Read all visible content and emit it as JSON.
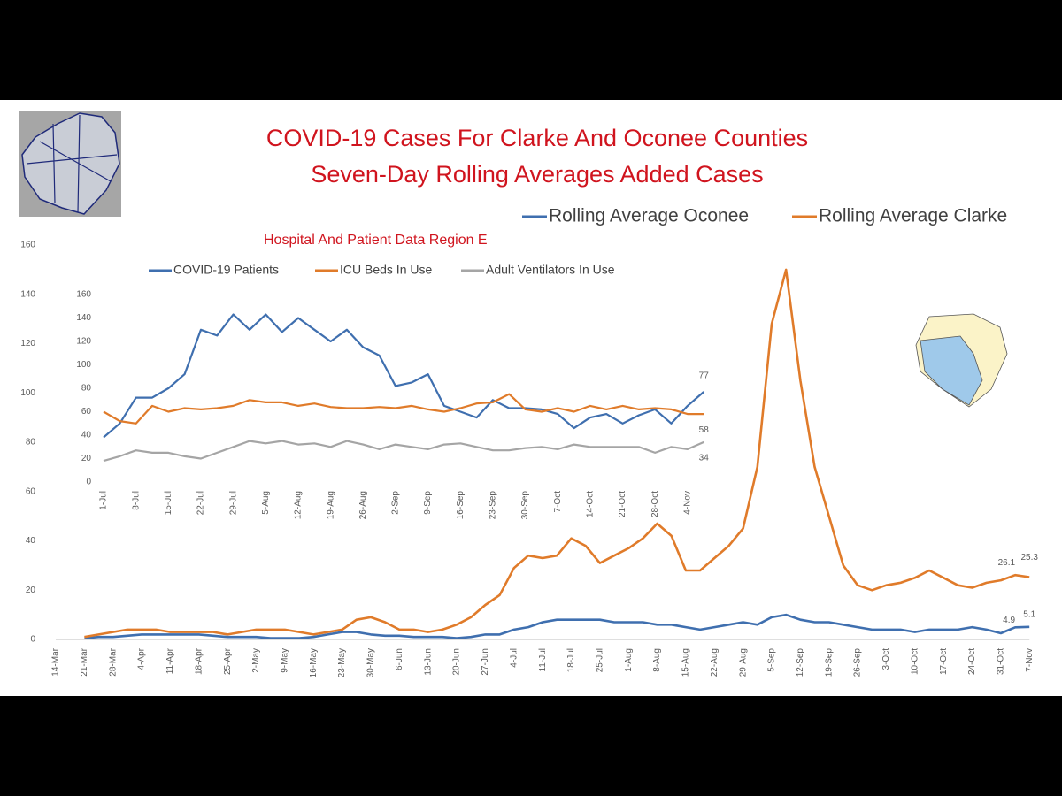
{
  "chart_data": [
    {
      "type": "line",
      "title": "COVID-19 Cases For Clarke And Oconee Counties",
      "subtitle": "Seven-Day Rolling Averages Added Cases",
      "categories": [
        "14-Mar",
        null,
        "21-Mar",
        null,
        "28-Mar",
        null,
        "4-Apr",
        null,
        "11-Apr",
        null,
        "18-Apr",
        null,
        "25-Apr",
        null,
        "2-May",
        null,
        "9-May",
        null,
        "16-May",
        null,
        "23-May",
        null,
        "30-May",
        null,
        "6-Jun",
        null,
        "13-Jun",
        null,
        "20-Jun",
        null,
        "27-Jun",
        null,
        "4-Jul",
        null,
        "11-Jul",
        null,
        "18-Jul",
        null,
        "25-Jul",
        null,
        "1-Aug",
        null,
        "8-Aug",
        null,
        "15-Aug",
        null,
        "22-Aug",
        null,
        "29-Aug",
        null,
        "5-Sep",
        null,
        "12-Sep",
        null,
        "19-Sep",
        null,
        "26-Sep",
        null,
        "3-Oct",
        null,
        "10-Oct",
        null,
        "17-Oct",
        null,
        "24-Oct",
        null,
        "31-Oct",
        null,
        "7-Nov"
      ],
      "series": [
        {
          "name": "Rolling Average Oconee",
          "color": "#3f6faf",
          "values": [
            null,
            null,
            0.5,
            1,
            1,
            1.5,
            2,
            2,
            2,
            2,
            2,
            1.5,
            1,
            1,
            1,
            0.5,
            0.5,
            0.5,
            1,
            2,
            3,
            3,
            2,
            1.5,
            1.5,
            1,
            1,
            1,
            0.5,
            1,
            2,
            2,
            4,
            5,
            7,
            8,
            8,
            8,
            8,
            7,
            7,
            7,
            6,
            6,
            5,
            4,
            5,
            6,
            7,
            6,
            9,
            10,
            8,
            7,
            7,
            6,
            5,
            4,
            4,
            4,
            3,
            4,
            4,
            4,
            5,
            4,
            2.5,
            4.9,
            5.1
          ]
        },
        {
          "name": "Rolling Average Clarke",
          "color": "#e07b2a",
          "values": [
            null,
            null,
            1,
            2,
            3,
            4,
            4,
            4,
            3,
            3,
            3,
            3,
            2,
            3,
            4,
            4,
            4,
            3,
            2,
            3,
            4,
            8,
            9,
            7,
            4,
            4,
            3,
            4,
            6,
            9,
            14,
            18,
            29,
            34,
            33,
            34,
            41,
            38,
            31,
            34,
            37,
            41,
            47,
            42,
            28,
            28,
            33,
            38,
            45,
            70,
            128,
            150,
            105,
            70,
            50,
            30,
            22,
            20,
            22,
            23,
            25,
            28,
            25,
            22,
            21,
            23,
            24,
            26.1,
            25.3
          ]
        }
      ],
      "ylim": [
        0,
        160
      ],
      "yticks": [
        0,
        20,
        40,
        60,
        80,
        100,
        120,
        140,
        160
      ],
      "legend": "top-right"
    },
    {
      "type": "line",
      "title": "Hospital And Patient Data Region E",
      "categories": [
        "1-Jul",
        null,
        "8-Jul",
        null,
        "15-Jul",
        null,
        "22-Jul",
        null,
        "29-Jul",
        null,
        "5-Aug",
        null,
        "12-Aug",
        null,
        "19-Aug",
        null,
        "26-Aug",
        null,
        "2-Sep",
        null,
        "9-Sep",
        null,
        "16-Sep",
        null,
        "23-Sep",
        null,
        "30-Sep",
        null,
        "7-Oct",
        null,
        "14-Oct",
        null,
        "21-Oct",
        null,
        "28-Oct",
        null,
        "4-Nov",
        null
      ],
      "series": [
        {
          "name": "COVID-19 Patients",
          "color": "#3f6faf",
          "values": [
            38,
            50,
            72,
            72,
            80,
            92,
            130,
            125,
            143,
            130,
            143,
            128,
            140,
            130,
            120,
            130,
            115,
            108,
            82,
            85,
            92,
            65,
            60,
            55,
            70,
            63,
            63,
            62,
            58,
            46,
            55,
            58,
            50,
            57,
            62,
            50,
            65,
            77
          ]
        },
        {
          "name": "ICU Beds In Use",
          "color": "#e07b2a",
          "values": [
            60,
            52,
            50,
            65,
            60,
            63,
            62,
            63,
            65,
            70,
            68,
            68,
            65,
            67,
            64,
            63,
            63,
            64,
            63,
            65,
            62,
            60,
            63,
            67,
            68,
            75,
            62,
            60,
            63,
            60,
            65,
            62,
            65,
            62,
            63,
            62,
            58,
            58
          ]
        },
        {
          "name": "Adult Ventilators In Use",
          "color": "#a5a5a5",
          "values": [
            18,
            22,
            27,
            25,
            25,
            22,
            20,
            25,
            30,
            35,
            33,
            35,
            32,
            33,
            30,
            35,
            32,
            28,
            32,
            30,
            28,
            32,
            33,
            30,
            27,
            27,
            29,
            30,
            28,
            32,
            30,
            30,
            30,
            30,
            25,
            30,
            28,
            34
          ]
        }
      ],
      "ylim": [
        0,
        160
      ],
      "yticks": [
        0,
        20,
        40,
        60,
        80,
        100,
        120,
        140,
        160
      ],
      "legend": "top"
    }
  ]
}
